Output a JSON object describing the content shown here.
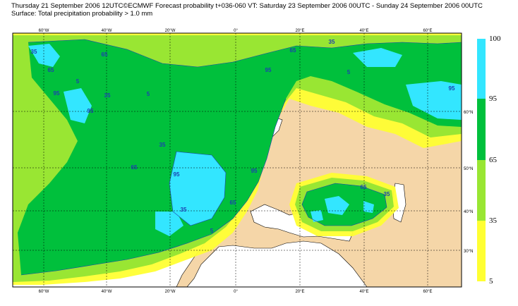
{
  "header": {
    "line1": "Thursday 21 September 2006 12UTC©ECMWF Forecast probability t+036-060 VT: Saturday 23 September 2006 00UTC - Sunday 24 September 2006 00UTC",
    "line2": "Surface: Total precipitation probability > 1.0 mm"
  },
  "map": {
    "lon_labels_top": [
      "60°W",
      "40°W",
      "20°W",
      "0°",
      "20°E",
      "40°E",
      "60°E"
    ],
    "lon_labels_bottom": [
      "60°W",
      "40°W",
      "20°W",
      "0°",
      "20°E",
      "40°E",
      "60°E"
    ],
    "lat_labels": [
      "60°N",
      "50°N",
      "40°N",
      "30°N"
    ],
    "contour_labels": [
      "35",
      "65",
      "95",
      "5",
      "35",
      "65",
      "95",
      "5",
      "35",
      "65",
      "95",
      "35",
      "5",
      "65",
      "95",
      "95",
      "65",
      "35",
      "5",
      "35",
      "65",
      "95"
    ],
    "colors": {
      "land": "#f5d6a8",
      "sea": "#ffffff",
      "p5": "#ffff33",
      "p35": "#99e633",
      "p65": "#00c03c",
      "p95": "#33e6ff"
    }
  },
  "legend": {
    "levels": [
      "100",
      "95",
      "65",
      "35",
      "5"
    ],
    "colors": [
      "#33e6ff",
      "#00c03c",
      "#99e633",
      "#ffff33"
    ]
  }
}
